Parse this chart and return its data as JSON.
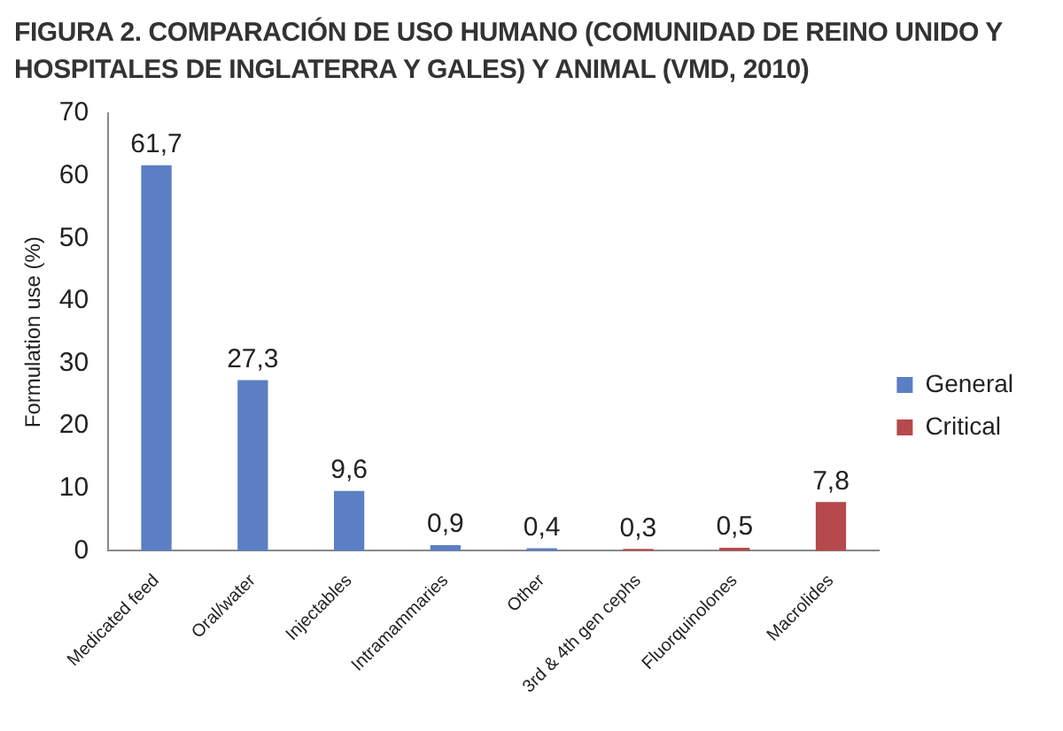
{
  "chart_data": {
    "type": "bar",
    "title": "FIGURA 2. COMPARACIÓN DE USO HUMANO (COMUNIDAD DE REINO UNIDO Y HOSPITALES DE INGLATERRA Y GALES) Y ANIMAL (VMD, 2010)",
    "ylabel": "Formulation use (%)",
    "categories": [
      "Medicated feed",
      "Oral/water",
      "Injectables",
      "Intramammaries",
      "Other",
      "3rd & 4th gen cephs",
      "Fluorquinolones",
      "Macrolides"
    ],
    "series": [
      {
        "name": "General",
        "color": "#5b7ec4",
        "values": [
          61.7,
          27.3,
          9.6,
          0.9,
          0.4,
          null,
          null,
          null
        ],
        "value_labels": [
          "61,7",
          "27,3",
          "9,6",
          "0,9",
          "0,4",
          null,
          null,
          null
        ]
      },
      {
        "name": "Critical",
        "color": "#b5494b",
        "values": [
          null,
          null,
          null,
          null,
          null,
          0.3,
          0.5,
          7.8
        ],
        "value_labels": [
          null,
          null,
          null,
          null,
          null,
          "0,3",
          "0,5",
          "7,8"
        ]
      }
    ],
    "ylim": [
      0,
      70
    ],
    "yticks": [
      0,
      10,
      20,
      30,
      40,
      50,
      60,
      70
    ],
    "grid": false,
    "legend": "right"
  }
}
